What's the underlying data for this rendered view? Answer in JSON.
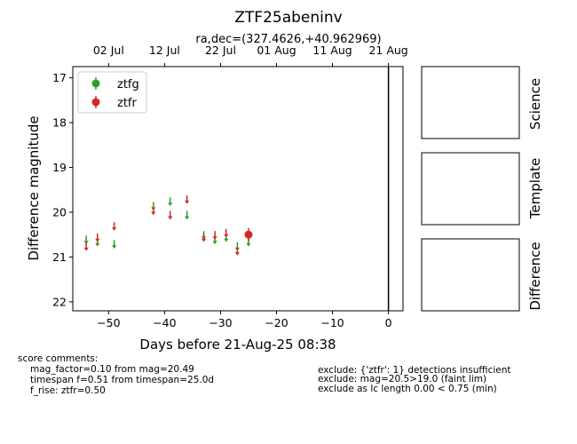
{
  "colors": {
    "ztfg": "#2ca02c",
    "ztfr": "#d62728",
    "axis": "#000000",
    "background": "#ffffff"
  },
  "chart_data": {
    "type": "scatter",
    "title": "ZTF25abeninv",
    "subtitle": "ra,dec=(327.4626,+40.962969)",
    "xlabel": "Days before 21-Aug-25 08:38",
    "ylabel": "Difference magnitude",
    "xlim": [
      -56.4,
      2.6
    ],
    "ylim": [
      22.2,
      16.75
    ],
    "y_inverted": true,
    "x_ticks": [
      -50,
      -40,
      -30,
      -20,
      -10,
      0
    ],
    "x_tick_labels": [
      "−50",
      "−40",
      "−30",
      "−20",
      "−10",
      "0"
    ],
    "y_ticks": [
      17,
      18,
      19,
      20,
      21,
      22
    ],
    "y_tick_labels": [
      "17",
      "18",
      "19",
      "20",
      "21",
      "22"
    ],
    "top_axis": {
      "ticks": [
        -50,
        -40,
        -30,
        -20,
        -10,
        0
      ],
      "labels": [
        "02 Jul",
        "12 Jul",
        "22 Jul",
        "01 Aug",
        "11 Aug",
        "21 Aug"
      ]
    },
    "vline_x": 0,
    "legend": {
      "position": "top-left",
      "entries": [
        "ztfg",
        "ztfr"
      ]
    },
    "series": [
      {
        "name": "ztfg",
        "detections": [],
        "upper_limits": [
          {
            "x": -54.0,
            "y": 20.6
          },
          {
            "x": -52.0,
            "y": 20.65
          },
          {
            "x": -49.0,
            "y": 20.7
          },
          {
            "x": -42.0,
            "y": 19.85
          },
          {
            "x": -39.0,
            "y": 19.75
          },
          {
            "x": -36.0,
            "y": 20.05
          },
          {
            "x": -33.0,
            "y": 20.5
          },
          {
            "x": -31.0,
            "y": 20.6
          },
          {
            "x": -29.0,
            "y": 20.55
          },
          {
            "x": -27.0,
            "y": 20.75
          },
          {
            "x": -25.0,
            "y": 20.65
          }
        ]
      },
      {
        "name": "ztfr",
        "detections": [
          {
            "x": -25.0,
            "y": 20.5,
            "err": 0.15
          }
        ],
        "upper_limits": [
          {
            "x": -54.0,
            "y": 20.75
          },
          {
            "x": -52.0,
            "y": 20.55
          },
          {
            "x": -49.0,
            "y": 20.3
          },
          {
            "x": -42.0,
            "y": 19.95
          },
          {
            "x": -39.0,
            "y": 20.05
          },
          {
            "x": -36.0,
            "y": 19.7
          },
          {
            "x": -33.0,
            "y": 20.55
          },
          {
            "x": -31.0,
            "y": 20.5
          },
          {
            "x": -29.0,
            "y": 20.45
          },
          {
            "x": -27.0,
            "y": 20.85
          }
        ]
      }
    ],
    "cutout_labels": [
      "Science",
      "Template",
      "Difference"
    ]
  },
  "score_comments": {
    "heading": "score comments:",
    "lines": [
      "mag_factor=0.10 from mag=20.49",
      "timespan f=0.51 from timespan=25.0d",
      "f_rise: ztfr=0.50"
    ]
  },
  "exclude_comments": [
    "exclude: {'ztfr': 1} detections insufficient",
    "exclude: mag=20.5>19.0 (faint lim)",
    "exclude as lc length 0.00 < 0.75 (min)"
  ]
}
